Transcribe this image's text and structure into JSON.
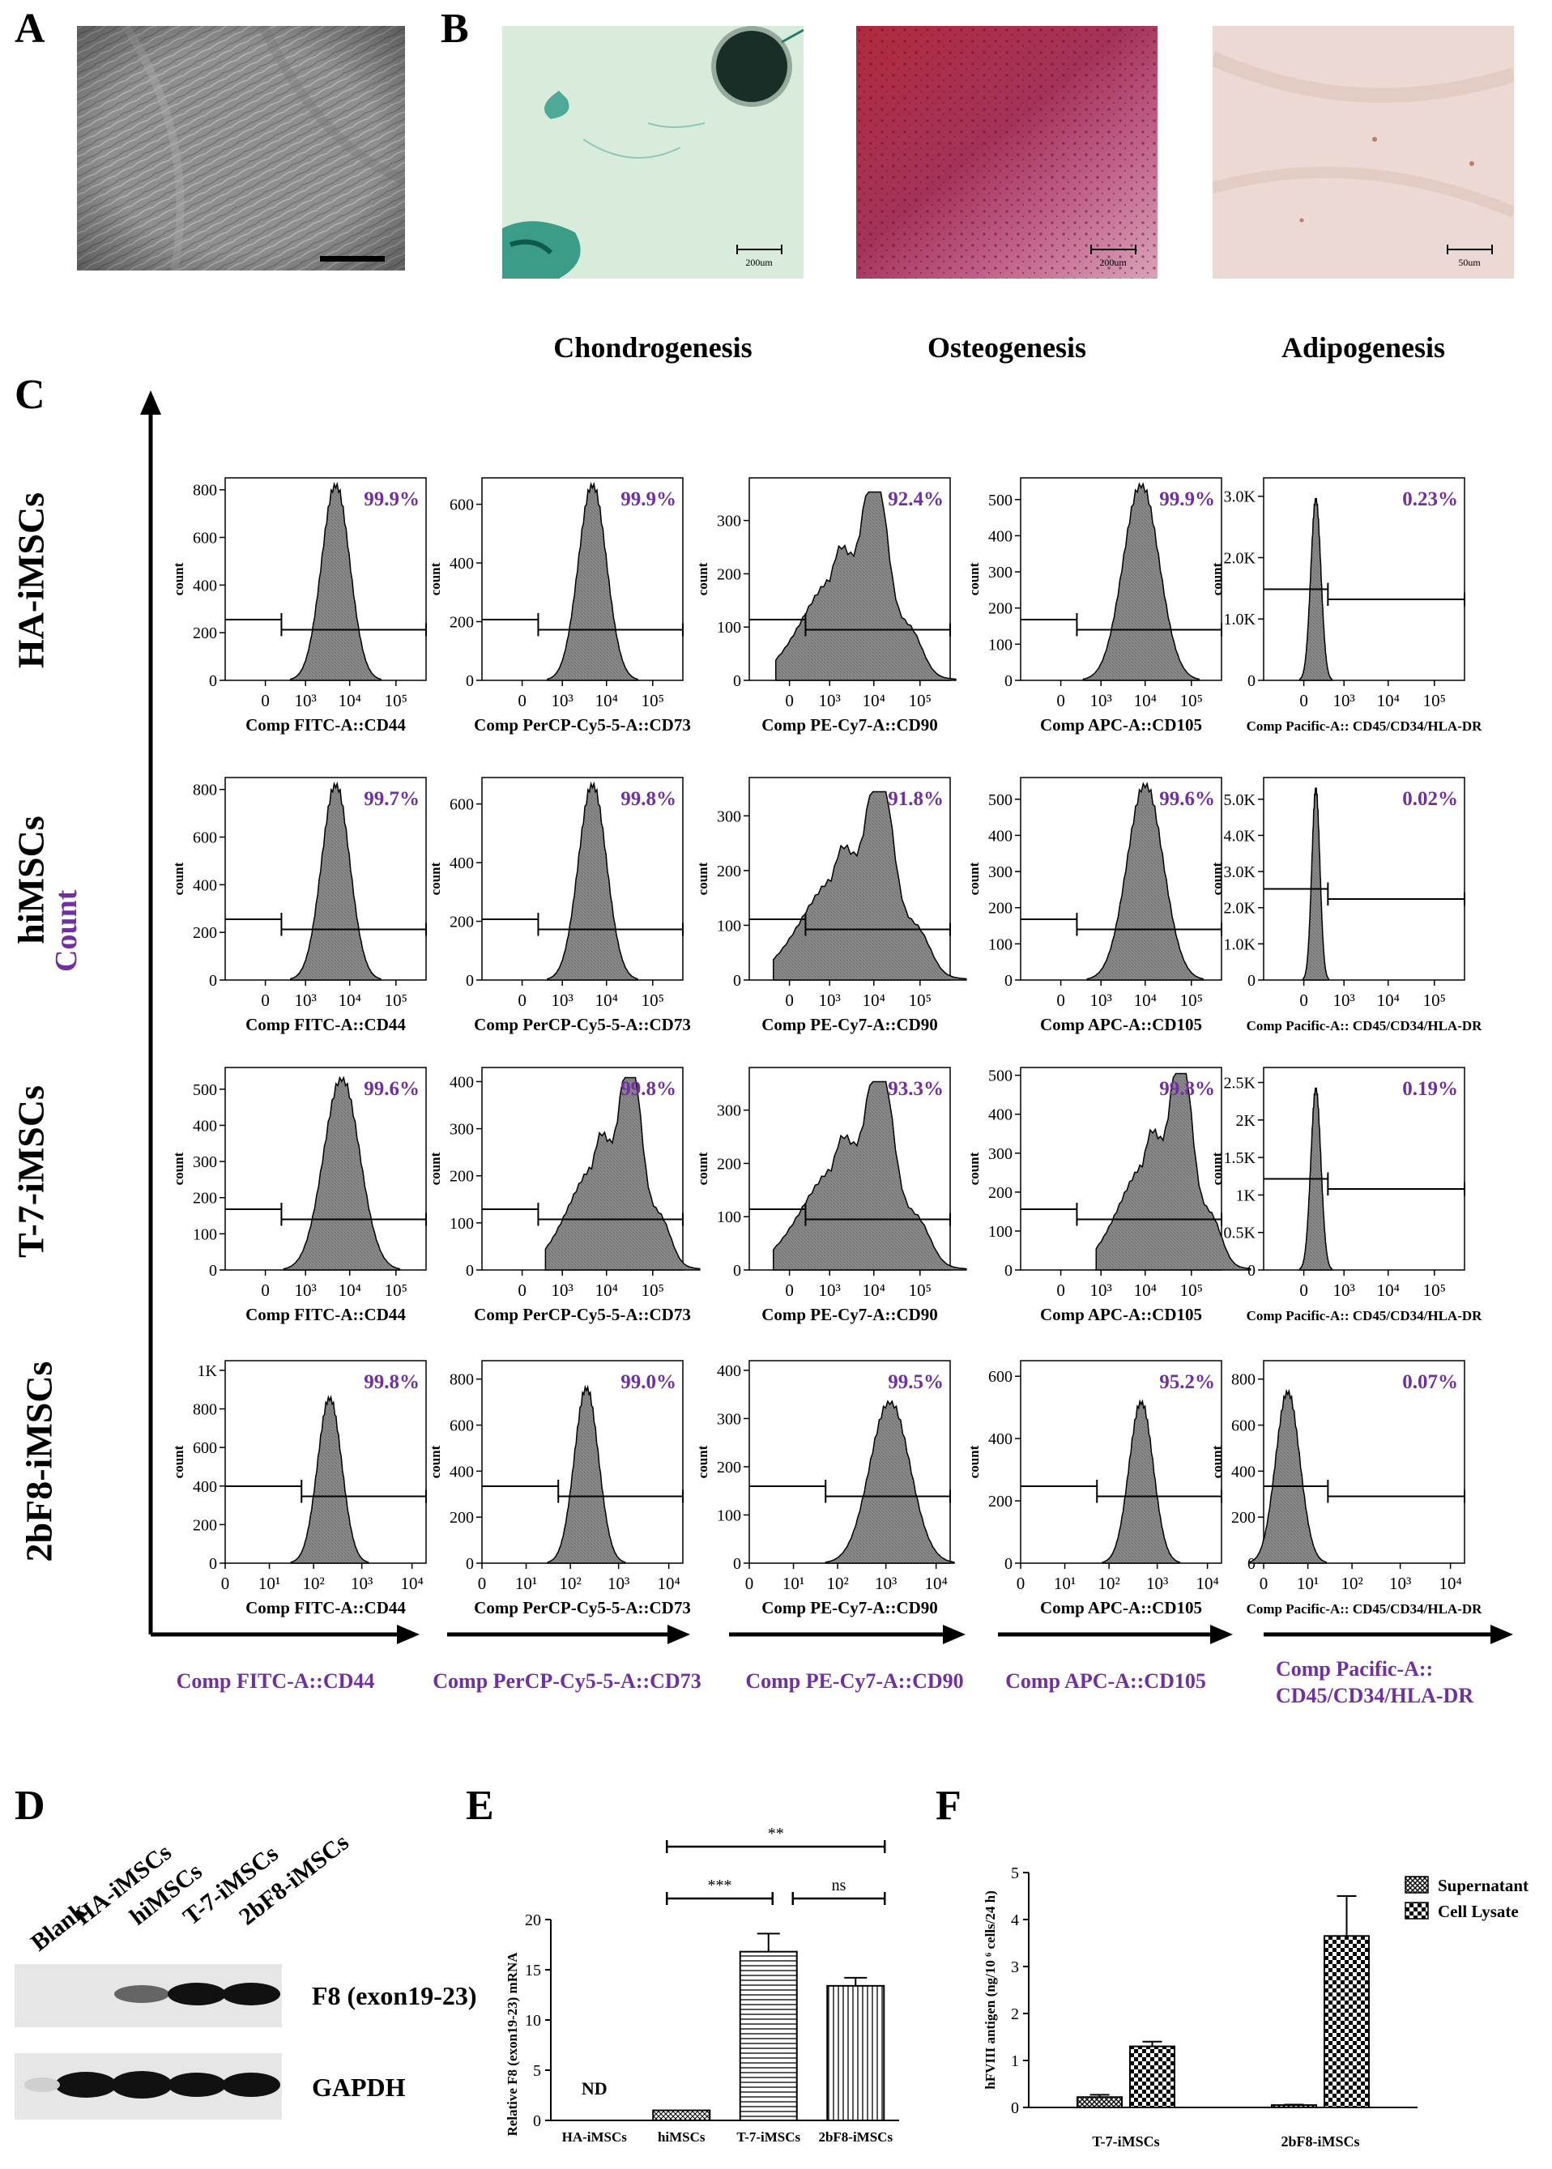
{
  "panels": {
    "a": "A",
    "b": "B",
    "c": "C",
    "d": "D",
    "e": "E",
    "f": "F"
  },
  "panel_b": {
    "captions": [
      "Chondrogenesis",
      "Osteogenesis",
      "Adipogenesis"
    ],
    "scalebars": [
      "200um",
      "200um",
      "50um"
    ]
  },
  "panel_c": {
    "y_title": "Count",
    "rows": [
      "HA-iMSCs",
      "hiMSCs",
      "T-7-iMSCs",
      "2bF8-iMSCs"
    ],
    "column_labels": [
      "Comp FITC-A::CD44",
      "Comp PerCP-Cy5-5-A::CD73",
      "Comp PE-Cy7-A::CD90",
      "Comp APC-A::CD105",
      "Comp Pacific-A::",
      "CD45/CD34/HLA-DR"
    ],
    "plot_xlabels": [
      "Comp FITC-A::CD44",
      "Comp PerCP-Cy5-5-A::CD73",
      "Comp PE-Cy7-A::CD90",
      "Comp APC-A::CD105",
      "Comp  Pacific-A:: CD45/CD34/HLA-DR"
    ],
    "ylabel": "count",
    "xticks_log": [
      "0",
      "10³",
      "10⁴",
      "10⁵"
    ],
    "xticks_log4": [
      "0",
      "10¹",
      "10²",
      "10³",
      "10⁴"
    ],
    "plots": [
      [
        {
          "pct": "99.9%",
          "yticks": [
            "0",
            "200",
            "400",
            "600",
            "800"
          ],
          "ymax": 850,
          "peak": 0.55,
          "width": 0.07,
          "hist": 0.97,
          "shape": "normal"
        },
        {
          "pct": "99.9%",
          "yticks": [
            "0",
            "200",
            "400",
            "600"
          ],
          "ymax": 690,
          "peak": 0.55,
          "width": 0.07,
          "hist": 0.97,
          "shape": "normal"
        },
        {
          "pct": "92.4%",
          "yticks": [
            "0",
            "100",
            "200",
            "300"
          ],
          "ymax": 380,
          "peak": 0.58,
          "width": 0.14,
          "hist": 0.93,
          "shape": "broad"
        },
        {
          "pct": "99.9%",
          "yticks": [
            "0",
            "100",
            "200",
            "300",
            "400",
            "500"
          ],
          "ymax": 560,
          "peak": 0.6,
          "width": 0.09,
          "hist": 0.97,
          "shape": "normal"
        },
        {
          "pct": "0.23%",
          "yticks": [
            "0",
            "1.0K",
            "2.0K",
            "3.0K"
          ],
          "ymax": 3300,
          "peak": 0.26,
          "width": 0.025,
          "hist": 0.9,
          "shape": "spike"
        }
      ],
      [
        {
          "pct": "99.7%",
          "yticks": [
            "0",
            "200",
            "400",
            "600",
            "800"
          ],
          "ymax": 850,
          "peak": 0.55,
          "width": 0.07,
          "hist": 0.97,
          "shape": "normal"
        },
        {
          "pct": "99.8%",
          "yticks": [
            "0",
            "200",
            "400",
            "600"
          ],
          "ymax": 690,
          "peak": 0.55,
          "width": 0.07,
          "hist": 0.97,
          "shape": "normal"
        },
        {
          "pct": "91.8%",
          "yticks": [
            "0",
            "100",
            "200",
            "300"
          ],
          "ymax": 370,
          "peak": 0.6,
          "width": 0.15,
          "hist": 0.93,
          "shape": "broad"
        },
        {
          "pct": "99.6%",
          "yticks": [
            "0",
            "100",
            "200",
            "300",
            "400",
            "500"
          ],
          "ymax": 560,
          "peak": 0.62,
          "width": 0.09,
          "hist": 0.97,
          "shape": "normal"
        },
        {
          "pct": "0.02%",
          "yticks": [
            "0",
            "1.0K",
            "2.0K",
            "3.0K",
            "4.0K",
            "5.0K"
          ],
          "ymax": 5600,
          "peak": 0.26,
          "width": 0.02,
          "hist": 0.95,
          "shape": "spike"
        }
      ],
      [
        {
          "pct": "99.6%",
          "yticks": [
            "0",
            "100",
            "200",
            "300",
            "400",
            "500"
          ],
          "ymax": 560,
          "peak": 0.58,
          "width": 0.09,
          "hist": 0.95,
          "shape": "normal"
        },
        {
          "pct": "99.8%",
          "yticks": [
            "0",
            "100",
            "200",
            "300",
            "400"
          ],
          "ymax": 430,
          "peak": 0.7,
          "width": 0.12,
          "hist": 0.95,
          "shape": "broad"
        },
        {
          "pct": "93.3%",
          "yticks": [
            "0",
            "100",
            "200",
            "300"
          ],
          "ymax": 380,
          "peak": 0.6,
          "width": 0.15,
          "hist": 0.93,
          "shape": "broad"
        },
        {
          "pct": "99.8%",
          "yticks": [
            "0",
            "100",
            "200",
            "300",
            "400",
            "500"
          ],
          "ymax": 520,
          "peak": 0.76,
          "width": 0.12,
          "hist": 0.97,
          "shape": "broad"
        },
        {
          "pct": "0.19%",
          "yticks": [
            "0",
            "0.5K",
            "1K",
            "1.5K",
            "2K",
            "2.5K"
          ],
          "ymax": 2700,
          "peak": 0.26,
          "width": 0.025,
          "hist": 0.9,
          "shape": "spike"
        }
      ],
      [
        {
          "pct": "99.8%",
          "yticks": [
            "0",
            "200",
            "400",
            "600",
            "800",
            "1K"
          ],
          "ymax": 1050,
          "peak": 0.52,
          "width": 0.06,
          "hist": 0.82,
          "shape": "normal"
        },
        {
          "pct": "99.0%",
          "yticks": [
            "0",
            "200",
            "400",
            "600",
            "800"
          ],
          "ymax": 880,
          "peak": 0.52,
          "width": 0.06,
          "hist": 0.87,
          "shape": "normal"
        },
        {
          "pct": "99.5%",
          "yticks": [
            "0",
            "100",
            "200",
            "300",
            "400"
          ],
          "ymax": 420,
          "peak": 0.7,
          "width": 0.1,
          "hist": 0.8,
          "shape": "normal"
        },
        {
          "pct": "95.2%",
          "yticks": [
            "0",
            "200",
            "400",
            "600"
          ],
          "ymax": 650,
          "peak": 0.6,
          "width": 0.06,
          "hist": 0.8,
          "shape": "normal"
        },
        {
          "pct": "0.07%",
          "yticks": [
            "0",
            "200",
            "400",
            "600",
            "800"
          ],
          "ymax": 880,
          "peak": 0.12,
          "width": 0.06,
          "hist": 0.85,
          "shape": "normal"
        }
      ]
    ]
  },
  "panel_d": {
    "lanes": [
      "Blank",
      "HA-iMSCs",
      "hiMSCs",
      "T-7-iMSCs",
      "2bF8-iMSCs"
    ],
    "bands": [
      "F8 (exon19-23)",
      "GAPDH"
    ]
  },
  "chart_data": [
    {
      "type": "bar",
      "title": "",
      "ylabel": "Relative F8 (exon19-23) mRNA",
      "xlabel": "",
      "categories": [
        "HA-iMSCs",
        "hiMSCs",
        "T-7-iMSCs",
        "2bF8-iMSCs"
      ],
      "values": [
        0,
        1.0,
        16.8,
        13.4
      ],
      "errors": [
        0,
        0,
        1.8,
        0.8
      ],
      "ylim": [
        0,
        20
      ],
      "yticks": [
        "0",
        "5",
        "10",
        "15",
        "20"
      ],
      "annotations": {
        "nd": "ND",
        "sig1": "***",
        "sig2": "ns",
        "sig3": "**"
      }
    },
    {
      "type": "bar",
      "title": "",
      "ylabel": "hFVIII antigen (ng/10 ⁶ cells/24 h)",
      "xlabel": "",
      "categories": [
        "T-7-iMSCs",
        "2bF8-iMSCs"
      ],
      "series": [
        {
          "name": "Supernatant",
          "values": [
            0.22,
            0.05
          ],
          "errors": [
            0.05,
            0.01
          ]
        },
        {
          "name": "Cell Lysate",
          "values": [
            1.3,
            3.65
          ],
          "errors": [
            0.1,
            0.85
          ]
        }
      ],
      "ylim": [
        0,
        5
      ],
      "yticks": [
        "0",
        "1",
        "2",
        "3",
        "4",
        "5"
      ]
    }
  ]
}
